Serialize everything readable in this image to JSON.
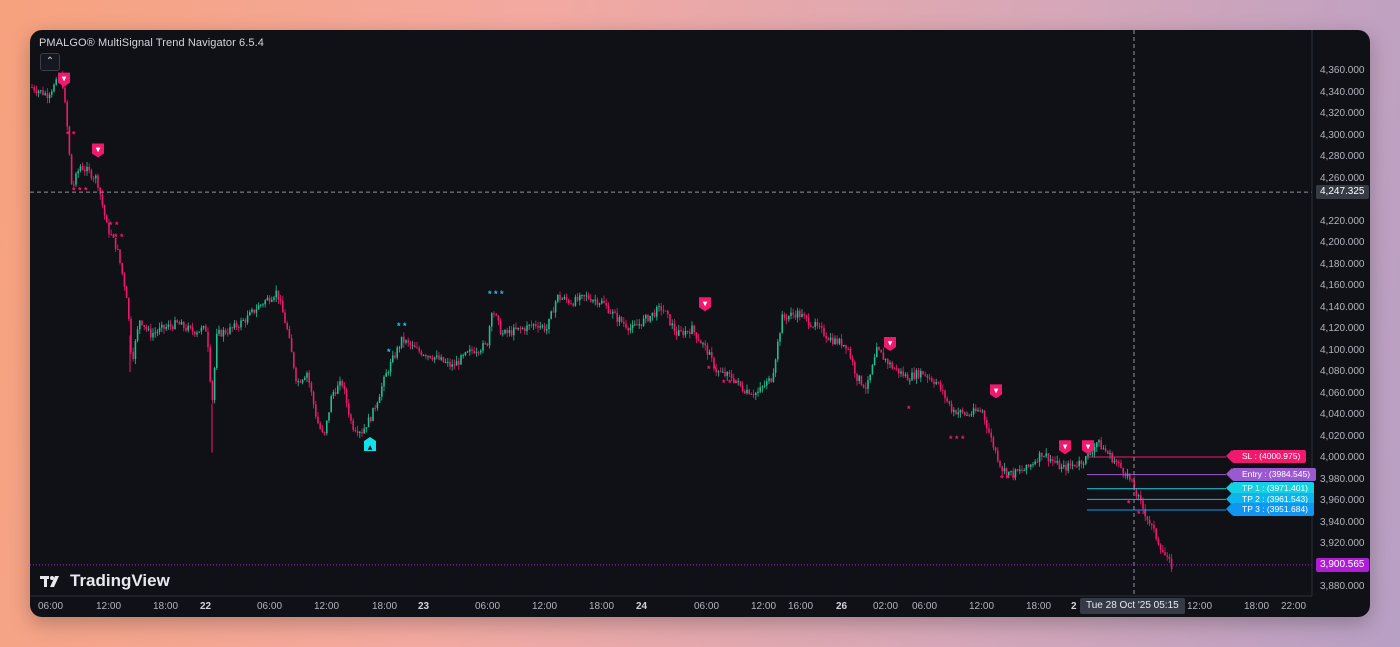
{
  "window": {
    "indicator_title": "PMALGO® MultiSignal Trend Navigator 6.5.4",
    "collapse_icon": "chevron-up-icon",
    "logo_text": "TradingView"
  },
  "price_axis": {
    "ticks": [
      "4,360.000",
      "4,340.000",
      "4,320.000",
      "4,300.000",
      "4,280.000",
      "4,260.000",
      "4,220.000",
      "4,200.000",
      "4,180.000",
      "4,160.000",
      "4,140.000",
      "4,120.000",
      "4,100.000",
      "4,080.000",
      "4,060.000",
      "4,040.000",
      "4,020.000",
      "4,000.000",
      "3,980.000",
      "3,960.000",
      "3,940.000",
      "3,920.000",
      "3,880.000"
    ],
    "crosshair_price": "4,247.325",
    "last_price": "3,900.565"
  },
  "time_axis": {
    "ticks": [
      "06:00",
      "12:00",
      "18:00",
      "22",
      "06:00",
      "12:00",
      "18:00",
      "23",
      "06:00",
      "12:00",
      "18:00",
      "24",
      "06:00",
      "12:00",
      "16:00",
      "26",
      "02:00",
      "06:00",
      "12:00",
      "18:00",
      "2",
      "05:15",
      "12:00",
      "18:00",
      "22:00"
    ],
    "crosshair_time": "Tue 28 Oct '25   05:15"
  },
  "trade_levels": [
    {
      "label": "SL : (4000.975)",
      "price": 4000.975,
      "color": "#f0196e"
    },
    {
      "label": "Entry : (3984.545)",
      "price": 3984.545,
      "color": "#9b59d0"
    },
    {
      "label": "TP 1 : (3971.401)",
      "price": 3971.401,
      "color": "#14d0e0"
    },
    {
      "label": "TP 2 : (3961.543)",
      "price": 3961.543,
      "color": "#10b4ec"
    },
    {
      "label": "TP 3 : (3951.684)",
      "price": 3951.684,
      "color": "#1096f0"
    }
  ],
  "signals": {
    "sell_icon": "down-arrow-badge-icon",
    "buy_icon": "up-arrow-badge-icon",
    "sell_marker_text": "▼",
    "buy_marker_text": "▲"
  },
  "colors": {
    "bull": "#1fbf8f",
    "bear": "#f0196e",
    "background": "#0f1116",
    "crosshair": "#8d929c"
  },
  "chart_data": {
    "type": "candlestick",
    "symbol_indicator": "PMALGO® MultiSignal Trend Navigator 6.5.4",
    "price_range": [
      3872,
      4368
    ],
    "path_points": [
      [
        0,
        4345
      ],
      [
        15,
        4338
      ],
      [
        30,
        4355
      ],
      [
        35,
        4310
      ],
      [
        40,
        4250
      ],
      [
        48,
        4272
      ],
      [
        58,
        4265
      ],
      [
        65,
        4260
      ],
      [
        75,
        4215
      ],
      [
        85,
        4195
      ],
      [
        95,
        4150
      ],
      [
        100,
        4090
      ],
      [
        108,
        4130
      ],
      [
        118,
        4115
      ],
      [
        130,
        4120
      ],
      [
        145,
        4125
      ],
      [
        160,
        4118
      ],
      [
        175,
        4120
      ],
      [
        180,
        4050
      ],
      [
        185,
        4115
      ],
      [
        200,
        4120
      ],
      [
        215,
        4130
      ],
      [
        225,
        4140
      ],
      [
        245,
        4155
      ],
      [
        255,
        4120
      ],
      [
        265,
        4070
      ],
      [
        275,
        4080
      ],
      [
        285,
        4035
      ],
      [
        292,
        4018
      ],
      [
        300,
        4060
      ],
      [
        310,
        4070
      ],
      [
        320,
        4030
      ],
      [
        330,
        4025
      ],
      [
        340,
        4040
      ],
      [
        355,
        4080
      ],
      [
        370,
        4110
      ],
      [
        385,
        4100
      ],
      [
        400,
        4095
      ],
      [
        420,
        4085
      ],
      [
        440,
        4100
      ],
      [
        455,
        4105
      ],
      [
        460,
        4140
      ],
      [
        470,
        4115
      ],
      [
        490,
        4120
      ],
      [
        505,
        4125
      ],
      [
        515,
        4120
      ],
      [
        525,
        4150
      ],
      [
        540,
        4145
      ],
      [
        555,
        4150
      ],
      [
        570,
        4145
      ],
      [
        585,
        4130
      ],
      [
        600,
        4120
      ],
      [
        615,
        4130
      ],
      [
        630,
        4140
      ],
      [
        645,
        4115
      ],
      [
        660,
        4120
      ],
      [
        675,
        4100
      ],
      [
        685,
        4080
      ],
      [
        700,
        4075
      ],
      [
        710,
        4065
      ],
      [
        725,
        4060
      ],
      [
        740,
        4075
      ],
      [
        750,
        4130
      ],
      [
        765,
        4135
      ],
      [
        780,
        4125
      ],
      [
        800,
        4110
      ],
      [
        815,
        4105
      ],
      [
        825,
        4075
      ],
      [
        835,
        4065
      ],
      [
        845,
        4100
      ],
      [
        860,
        4085
      ],
      [
        875,
        4075
      ],
      [
        890,
        4080
      ],
      [
        905,
        4070
      ],
      [
        920,
        4045
      ],
      [
        935,
        4040
      ],
      [
        950,
        4045
      ],
      [
        960,
        4015
      ],
      [
        970,
        3990
      ],
      [
        980,
        3985
      ],
      [
        995,
        3990
      ],
      [
        1010,
        4005
      ],
      [
        1020,
        3998
      ],
      [
        1030,
        3990
      ],
      [
        1045,
        3995
      ],
      [
        1055,
        4000
      ],
      [
        1065,
        4015
      ],
      [
        1075,
        4005
      ],
      [
        1085,
        3995
      ],
      [
        1095,
        3985
      ],
      [
        1105,
        3965
      ],
      [
        1115,
        3945
      ],
      [
        1125,
        3925
      ],
      [
        1135,
        3905
      ],
      [
        1141,
        3898
      ]
    ],
    "path_x_range": [
      0,
      1141
    ],
    "signal_markers": [
      {
        "type": "sell",
        "price": 4352,
        "x": 32
      },
      {
        "type": "sell",
        "price": 4286,
        "x": 66
      },
      {
        "type": "buy",
        "price": 4013,
        "x": 338
      },
      {
        "type": "sell",
        "price": 4143,
        "x": 673
      },
      {
        "type": "sell",
        "price": 4106,
        "x": 858
      },
      {
        "type": "sell",
        "price": 4062,
        "x": 964
      },
      {
        "type": "sell",
        "price": 4010,
        "x": 1033
      },
      {
        "type": "sell",
        "price": 4010,
        "x": 1056
      }
    ],
    "star_labels": [
      {
        "text": "* *",
        "price": 4298,
        "x": 34,
        "color": "#f0196e"
      },
      {
        "text": "* * *",
        "price": 4246,
        "x": 40,
        "color": "#f0196e"
      },
      {
        "text": "* *",
        "price": 4214,
        "x": 77,
        "color": "#f0196e"
      },
      {
        "text": "* *",
        "price": 4203,
        "x": 82,
        "color": "#f0196e"
      },
      {
        "text": "*",
        "price": 4096,
        "x": 355,
        "color": "#14d0e0"
      },
      {
        "text": "* *",
        "price": 4120,
        "x": 365,
        "color": "#14d0e0"
      },
      {
        "text": "* * *",
        "price": 4150,
        "x": 456,
        "color": "#14d0e0"
      },
      {
        "text": "* *",
        "price": 4080,
        "x": 675,
        "color": "#f0196e"
      },
      {
        "text": "* * *",
        "price": 4067,
        "x": 690,
        "color": "#f0196e"
      },
      {
        "text": "*",
        "price": 4043,
        "x": 875,
        "color": "#f0196e"
      },
      {
        "text": "* * *",
        "price": 4015,
        "x": 917,
        "color": "#f0196e"
      },
      {
        "text": "* * *",
        "price": 3978,
        "x": 968,
        "color": "#f0196e"
      },
      {
        "text": "*",
        "price": 3955,
        "x": 1095,
        "color": "#f0196e"
      },
      {
        "text": "* *",
        "price": 3945,
        "x": 1105,
        "color": "#f0196e"
      }
    ],
    "crosshair": {
      "price": 4247.325,
      "time": "Tue 28 Oct '25 05:15"
    },
    "last_price": 3900.565,
    "grid": false
  }
}
